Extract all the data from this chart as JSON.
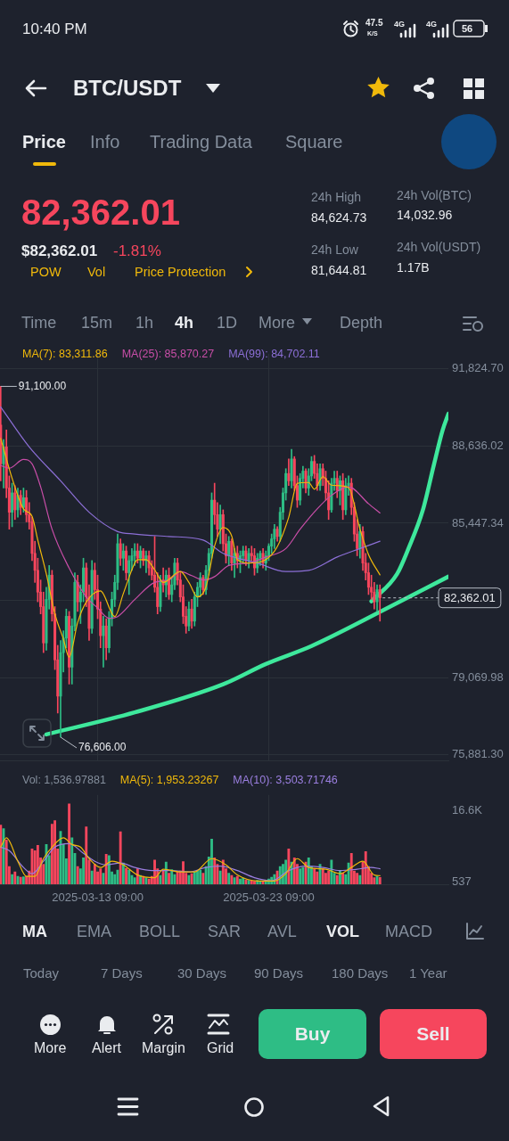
{
  "chart_data": [
    {
      "type": "other",
      "title": "BTC/USDT",
      "annotations": [
        "10:40 PM",
        "47.5",
        "K/S",
        "4G",
        "4G",
        "56",
        "Price",
        "Info",
        "Trading Data",
        "Square",
        "82,362.01",
        "$82,362.01",
        "-1.81%",
        "POW",
        "Vol",
        "Price Protection",
        "24h High",
        "84,624.73",
        "24h Low",
        "81,644.81",
        "24h Vol(BTC)",
        "14,032.96",
        "24h Vol(USDT)",
        "1.17B",
        "Time",
        "15m",
        "1h",
        "4h",
        "1D",
        "More",
        "Depth"
      ]
    },
    {
      "type": "candlestick",
      "x": [
        "2025-03-07T17:00",
        "2025-03-07T21:00",
        "2025-03-08T01:00",
        "2025-03-08T05:00",
        "2025-03-08T09:00",
        "2025-03-08T13:00",
        "2025-03-08T17:00",
        "2025-03-08T21:00",
        "2025-03-09T01:00",
        "2025-03-09T05:00",
        "2025-03-09T09:00",
        "2025-03-09T13:00",
        "2025-03-09T17:00",
        "2025-03-09T21:00",
        "2025-03-10T01:00",
        "2025-03-10T05:00",
        "2025-03-10T09:00",
        "2025-03-10T13:00",
        "2025-03-10T17:00",
        "2025-03-10T21:00",
        "2025-03-11T01:00",
        "2025-03-11T05:00",
        "2025-03-11T09:00",
        "2025-03-11T13:00",
        "2025-03-11T17:00",
        "2025-03-11T21:00",
        "2025-03-12T01:00",
        "2025-03-12T05:00",
        "2025-03-12T09:00",
        "2025-03-12T13:00",
        "2025-03-12T17:00",
        "2025-03-12T21:00",
        "2025-03-13T01:00",
        "2025-03-13T05:00",
        "2025-03-13T09:00",
        "2025-03-13T13:00",
        "2025-03-13T17:00",
        "2025-03-13T21:00",
        "2025-03-14T01:00",
        "2025-03-14T05:00",
        "2025-03-14T09:00",
        "2025-03-14T13:00",
        "2025-03-14T17:00",
        "2025-03-14T21:00",
        "2025-03-15T01:00",
        "2025-03-15T05:00",
        "2025-03-15T09:00",
        "2025-03-15T13:00",
        "2025-03-15T17:00",
        "2025-03-15T21:00",
        "2025-03-16T01:00",
        "2025-03-16T05:00",
        "2025-03-16T09:00",
        "2025-03-16T13:00",
        "2025-03-16T17:00",
        "2025-03-16T21:00",
        "2025-03-17T01:00",
        "2025-03-17T05:00",
        "2025-03-17T09:00",
        "2025-03-17T13:00",
        "2025-03-17T17:00",
        "2025-03-17T21:00",
        "2025-03-18T01:00",
        "2025-03-18T05:00",
        "2025-03-18T09:00",
        "2025-03-18T13:00",
        "2025-03-18T17:00",
        "2025-03-18T21:00",
        "2025-03-19T01:00",
        "2025-03-19T05:00",
        "2025-03-19T09:00",
        "2025-03-19T13:00",
        "2025-03-19T17:00",
        "2025-03-19T21:00",
        "2025-03-20T01:00",
        "2025-03-20T05:00",
        "2025-03-20T09:00",
        "2025-03-20T13:00",
        "2025-03-20T17:00",
        "2025-03-20T21:00",
        "2025-03-21T01:00",
        "2025-03-21T05:00",
        "2025-03-21T09:00",
        "2025-03-21T13:00",
        "2025-03-21T17:00",
        "2025-03-21T21:00",
        "2025-03-22T01:00",
        "2025-03-22T05:00",
        "2025-03-22T09:00",
        "2025-03-22T13:00",
        "2025-03-22T17:00",
        "2025-03-22T21:00",
        "2025-03-23T01:00",
        "2025-03-23T05:00",
        "2025-03-23T09:00",
        "2025-03-23T13:00",
        "2025-03-23T17:00",
        "2025-03-23T21:00",
        "2025-03-24T01:00",
        "2025-03-24T05:00",
        "2025-03-24T09:00",
        "2025-03-24T13:00",
        "2025-03-24T17:00",
        "2025-03-24T21:00",
        "2025-03-25T01:00",
        "2025-03-25T05:00",
        "2025-03-25T09:00",
        "2025-03-25T13:00",
        "2025-03-25T17:00",
        "2025-03-25T21:00",
        "2025-03-26T01:00",
        "2025-03-26T05:00",
        "2025-03-26T09:00",
        "2025-03-26T13:00",
        "2025-03-26T17:00",
        "2025-03-26T21:00",
        "2025-03-27T01:00",
        "2025-03-27T05:00",
        "2025-03-27T09:00",
        "2025-03-27T13:00",
        "2025-03-27T17:00",
        "2025-03-27T21:00",
        "2025-03-28T01:00",
        "2025-03-28T05:00",
        "2025-03-28T09:00",
        "2025-03-28T13:00",
        "2025-03-28T17:00",
        "2025-03-28T21:00",
        "2025-03-29T01:00",
        "2025-03-29T05:00",
        "2025-03-29T09:00",
        "2025-03-29T13:00",
        "2025-03-29T17:00",
        "2025-03-29T21:00"
      ],
      "ohlc": [
        [
          89500,
          91100,
          87200,
          87900
        ],
        [
          87900,
          88900,
          86900,
          88600
        ],
        [
          88600,
          89300,
          86500,
          86900
        ],
        [
          86900,
          87400,
          85200,
          85900
        ],
        [
          85900,
          87100,
          85300,
          86700
        ],
        [
          86700,
          87000,
          85600,
          86000
        ],
        [
          86000,
          86900,
          85700,
          86600
        ],
        [
          86600,
          86800,
          85800,
          86100
        ],
        [
          86100,
          86900,
          85900,
          86500
        ],
        [
          86500,
          86800,
          85500,
          85800
        ],
        [
          85800,
          86300,
          85200,
          85500
        ],
        [
          85500,
          85700,
          83900,
          84200
        ],
        [
          84200,
          84700,
          83000,
          83500
        ],
        [
          83500,
          84000,
          82200,
          82600
        ],
        [
          82600,
          83100,
          81700,
          82000
        ],
        [
          82000,
          82600,
          80100,
          80500
        ],
        [
          80500,
          82800,
          80200,
          82300
        ],
        [
          82300,
          83700,
          81900,
          83300
        ],
        [
          83300,
          83500,
          81400,
          81700
        ],
        [
          81700,
          82000,
          79400,
          79800
        ],
        [
          79800,
          80400,
          77600,
          78300
        ],
        [
          78300,
          80600,
          76606,
          80100
        ],
        [
          80100,
          81000,
          79300,
          80700
        ],
        [
          80700,
          81900,
          80300,
          81600
        ],
        [
          81600,
          81800,
          78800,
          79500
        ],
        [
          79500,
          81500,
          78800,
          81200
        ],
        [
          81200,
          83400,
          81000,
          83000
        ],
        [
          83000,
          83300,
          81800,
          82200
        ],
        [
          82200,
          82900,
          81300,
          82600
        ],
        [
          82600,
          84000,
          82200,
          83600
        ],
        [
          83600,
          83800,
          82000,
          82400
        ],
        [
          82400,
          82900,
          80600,
          81100
        ],
        [
          81100,
          83900,
          80900,
          83500
        ],
        [
          83500,
          83800,
          82300,
          82700
        ],
        [
          82700,
          83300,
          81500,
          81900
        ],
        [
          81900,
          82200,
          80300,
          80800
        ],
        [
          80800,
          81600,
          79500,
          81200
        ],
        [
          81200,
          81500,
          79800,
          80300
        ],
        [
          80300,
          81800,
          80100,
          81500
        ],
        [
          81500,
          82600,
          81200,
          82300
        ],
        [
          82300,
          83300,
          82000,
          83000
        ],
        [
          83000,
          85000,
          82700,
          84600
        ],
        [
          84600,
          84800,
          83700,
          84000
        ],
        [
          84000,
          84600,
          83500,
          84300
        ],
        [
          84300,
          84500,
          83100,
          83400
        ],
        [
          83400,
          84100,
          82500,
          83900
        ],
        [
          83900,
          84400,
          83500,
          84100
        ],
        [
          84100,
          84600,
          83700,
          84300
        ],
        [
          84300,
          84600,
          83800,
          84000
        ],
        [
          84000,
          84500,
          83600,
          84300
        ],
        [
          84300,
          84400,
          83700,
          83900
        ],
        [
          83900,
          84300,
          83400,
          84100
        ],
        [
          84100,
          84300,
          83300,
          83600
        ],
        [
          83600,
          83900,
          83100,
          83300
        ],
        [
          83300,
          84900,
          82600,
          82800
        ],
        [
          82800,
          83400,
          81700,
          82000
        ],
        [
          82000,
          83300,
          81800,
          83100
        ],
        [
          83100,
          83600,
          82600,
          82900
        ],
        [
          82900,
          83500,
          82400,
          83300
        ],
        [
          83300,
          83600,
          82300,
          82500
        ],
        [
          82500,
          83200,
          82200,
          82900
        ],
        [
          82900,
          84000,
          82700,
          83800
        ],
        [
          83800,
          84000,
          82900,
          83100
        ],
        [
          83100,
          83400,
          82200,
          82400
        ],
        [
          82400,
          82900,
          81300,
          81600
        ],
        [
          81600,
          82000,
          80900,
          81200
        ],
        [
          81200,
          82200,
          81000,
          81900
        ],
        [
          81900,
          82300,
          81100,
          81400
        ],
        [
          81400,
          82600,
          81200,
          82400
        ],
        [
          82400,
          83000,
          82000,
          82800
        ],
        [
          82800,
          83400,
          82400,
          83200
        ],
        [
          83200,
          83300,
          82500,
          82700
        ],
        [
          82700,
          83700,
          82500,
          83500
        ],
        [
          83500,
          84400,
          83300,
          84200
        ],
        [
          84200,
          86700,
          84000,
          86400
        ],
        [
          86400,
          87100,
          85400,
          85800
        ],
        [
          85800,
          86300,
          84900,
          85200
        ],
        [
          85200,
          86200,
          84600,
          85800
        ],
        [
          85800,
          86000,
          84300,
          84600
        ],
        [
          84600,
          85000,
          83800,
          84100
        ],
        [
          84100,
          84900,
          83700,
          84700
        ],
        [
          84700,
          84800,
          83500,
          83800
        ],
        [
          83800,
          84400,
          83200,
          84200
        ],
        [
          84200,
          84500,
          83600,
          83900
        ],
        [
          83900,
          84300,
          83400,
          84100
        ],
        [
          84100,
          84500,
          83800,
          84300
        ],
        [
          84300,
          84500,
          83700,
          83900
        ],
        [
          83900,
          84400,
          83600,
          84200
        ],
        [
          84200,
          84500,
          83900,
          84100
        ],
        [
          84100,
          84400,
          83300,
          83600
        ],
        [
          83600,
          84200,
          83400,
          84000
        ],
        [
          84000,
          84300,
          83700,
          84200
        ],
        [
          84200,
          84400,
          83600,
          83800
        ],
        [
          83800,
          84300,
          83500,
          84100
        ],
        [
          84100,
          84600,
          83900,
          84500
        ],
        [
          84500,
          85000,
          84200,
          84800
        ],
        [
          84800,
          85400,
          84400,
          85200
        ],
        [
          85200,
          85300,
          84700,
          84900
        ],
        [
          84900,
          86100,
          84700,
          85900
        ],
        [
          85900,
          86900,
          85600,
          86700
        ],
        [
          86700,
          87700,
          86400,
          87500
        ],
        [
          87500,
          88100,
          87000,
          87200
        ],
        [
          87200,
          88500,
          86900,
          88100
        ],
        [
          88100,
          88200,
          86800,
          87000
        ],
        [
          87000,
          87400,
          86100,
          86400
        ],
        [
          86400,
          87500,
          86200,
          87300
        ],
        [
          87300,
          87800,
          86900,
          87600
        ],
        [
          87600,
          87700,
          86700,
          86900
        ],
        [
          86900,
          87700,
          86600,
          87400
        ],
        [
          87400,
          88200,
          87200,
          88000
        ],
        [
          88000,
          88250,
          87300,
          87500
        ],
        [
          87500,
          87900,
          86800,
          87000
        ],
        [
          87000,
          87900,
          86800,
          87700
        ],
        [
          87700,
          87900,
          87000,
          87300
        ],
        [
          87300,
          87600,
          86400,
          86700
        ],
        [
          86700,
          87200,
          85600,
          86000
        ],
        [
          86000,
          87300,
          85900,
          87100
        ],
        [
          87100,
          87600,
          86800,
          87300
        ],
        [
          87300,
          87600,
          86500,
          86800
        ],
        [
          86800,
          87400,
          86200,
          87200
        ],
        [
          87200,
          87500,
          85600,
          86000
        ],
        [
          86000,
          87300,
          85800,
          87000
        ],
        [
          87000,
          87400,
          86600,
          87100
        ],
        [
          87100,
          87300,
          85800,
          86100
        ],
        [
          86100,
          86300,
          84700,
          85000
        ],
        [
          85000,
          85600,
          84100,
          84400
        ],
        [
          84400,
          85400,
          84000,
          85100
        ],
        [
          85100,
          85300,
          83500,
          83800
        ],
        [
          83800,
          84200,
          83100,
          83400
        ],
        [
          83400,
          83800,
          82500,
          82800
        ],
        [
          82800,
          83300,
          82300,
          82600
        ],
        [
          82600,
          83000,
          81900,
          82200
        ],
        [
          82200,
          82900,
          81800,
          82700
        ],
        [
          82700,
          82900,
          81400,
          82362.01
        ]
      ],
      "colors": [
        "#f6465d",
        "#2ebd85",
        "#f6465d",
        "#f6465d",
        "#2ebd85",
        "#f6465d",
        "#2ebd85",
        "#f6465d",
        "#2ebd85",
        "#f6465d",
        "#f6465d",
        "#f6465d",
        "#f6465d",
        "#f6465d",
        "#f6465d",
        "#f6465d",
        "#2ebd85",
        "#2ebd85",
        "#f6465d",
        "#f6465d",
        "#f6465d",
        "#2ebd85",
        "#2ebd85",
        "#2ebd85",
        "#f6465d",
        "#2ebd85",
        "#2ebd85",
        "#f6465d",
        "#2ebd85",
        "#2ebd85",
        "#f6465d",
        "#f6465d",
        "#2ebd85",
        "#f6465d",
        "#f6465d",
        "#f6465d",
        "#2ebd85",
        "#f6465d",
        "#2ebd85",
        "#2ebd85",
        "#2ebd85",
        "#2ebd85",
        "#f6465d",
        "#2ebd85",
        "#f6465d",
        "#2ebd85",
        "#2ebd85",
        "#2ebd85",
        "#f6465d",
        "#2ebd85",
        "#f6465d",
        "#2ebd85",
        "#f6465d",
        "#f6465d",
        "#f6465d",
        "#f6465d",
        "#2ebd85",
        "#f6465d",
        "#2ebd85",
        "#f6465d",
        "#2ebd85",
        "#2ebd85",
        "#f6465d",
        "#f6465d",
        "#f6465d",
        "#f6465d",
        "#2ebd85",
        "#f6465d",
        "#2ebd85",
        "#2ebd85",
        "#2ebd85",
        "#f6465d",
        "#2ebd85",
        "#2ebd85",
        "#2ebd85",
        "#f6465d",
        "#f6465d",
        "#2ebd85",
        "#f6465d",
        "#f6465d",
        "#2ebd85",
        "#f6465d",
        "#2ebd85",
        "#f6465d",
        "#2ebd85",
        "#2ebd85",
        "#f6465d",
        "#2ebd85",
        "#f6465d",
        "#f6465d",
        "#2ebd85",
        "#2ebd85",
        "#f6465d",
        "#2ebd85",
        "#2ebd85",
        "#2ebd85",
        "#2ebd85",
        "#f6465d",
        "#2ebd85",
        "#2ebd85",
        "#2ebd85",
        "#f6465d",
        "#2ebd85",
        "#f6465d",
        "#f6465d",
        "#2ebd85",
        "#2ebd85",
        "#f6465d",
        "#2ebd85",
        "#2ebd85",
        "#f6465d",
        "#f6465d",
        "#2ebd85",
        "#f6465d",
        "#f6465d",
        "#f6465d",
        "#2ebd85",
        "#2ebd85",
        "#f6465d",
        "#2ebd85",
        "#f6465d",
        "#2ebd85",
        "#2ebd85",
        "#f6465d",
        "#f6465d",
        "#f6465d",
        "#2ebd85",
        "#f6465d",
        "#f6465d",
        "#f6465d",
        "#f6465d",
        "#f6465d",
        "#2ebd85",
        "#f6465d"
      ],
      "series": [
        {
          "name": "MA(7): 83,311.86",
          "type": "line",
          "color": "#f0b90b",
          "x": [
            "2025-03-07T17:00",
            "2025-03-08T09:00",
            "2025-03-09T01:00",
            "2025-03-09T13:00",
            "2025-03-09T21:00",
            "2025-03-10T09:00",
            "2025-03-10T21:00",
            "2025-03-11T09:00",
            "2025-03-11T17:00",
            "2025-03-12T05:00",
            "2025-03-12T17:00",
            "2025-03-13T13:00",
            "2025-03-14T09:00",
            "2025-03-14T21:00",
            "2025-03-15T13:00",
            "2025-03-15T17:00",
            "2025-03-16T05:00",
            "2025-03-16T17:00",
            "2025-03-17T05:00",
            "2025-03-18T05:00",
            "2025-03-18T17:00",
            "2025-03-19T05:00",
            "2025-03-19T17:00",
            "2025-03-20T05:00",
            "2025-03-20T17:00",
            "2025-03-21T05:00",
            "2025-03-21T13:00",
            "2025-03-22T05:00",
            "2025-03-23T17:00",
            "2025-03-24T13:00",
            "2025-03-25T01:00",
            "2025-03-25T17:00",
            "2025-03-26T01:00",
            "2025-03-26T13:00",
            "2025-03-27T01:00",
            "2025-03-28T01:00",
            "2025-03-28T17:00",
            "2025-03-29T05:00",
            "2025-03-29T21:00"
          ],
          "values": [
            88950,
            87300,
            86040,
            85730,
            84750,
            83350,
            81700,
            80650,
            79910,
            81350,
            82190,
            82650,
            81590,
            82540,
            83800,
            83940,
            83940,
            83520,
            83000,
            83450,
            83000,
            82400,
            82820,
            84500,
            85270,
            84920,
            83940,
            83800,
            84290,
            85690,
            87090,
            87130,
            86850,
            87370,
            87020,
            86920,
            85200,
            84150,
            83311.86
          ]
        },
        {
          "name": "MA(25): 85,870.27",
          "type": "line",
          "color": "#c94ea8",
          "x": [
            "2025-03-07T17:00",
            "2025-03-08T05:00",
            "2025-03-09T01:00",
            "2025-03-09T13:00",
            "2025-03-10T01:00",
            "2025-03-10T17:00",
            "2025-03-11T17:00",
            "2025-03-12T17:00",
            "2025-03-13T09:00",
            "2025-03-14T01:00",
            "2025-03-14T13:00",
            "2025-03-15T13:00",
            "2025-03-16T17:00",
            "2025-03-17T13:00",
            "2025-03-18T05:00",
            "2025-03-18T21:00",
            "2025-03-19T13:00",
            "2025-03-20T05:00",
            "2025-03-21T01:00",
            "2025-03-22T05:00",
            "2025-03-23T05:00",
            "2025-03-24T09:00",
            "2025-03-25T05:00",
            "2025-03-26T05:00",
            "2025-03-27T01:00",
            "2025-03-28T01:00",
            "2025-03-29T05:00",
            "2025-03-29T21:00"
          ],
          "values": [
            87830,
            87720,
            88080,
            87900,
            86950,
            85200,
            83590,
            82400,
            81940,
            81520,
            81590,
            82290,
            83000,
            83100,
            83450,
            83280,
            83100,
            83240,
            83700,
            83800,
            84050,
            84400,
            85200,
            86040,
            86600,
            86950,
            86250,
            85870.27
          ]
        },
        {
          "name": "MA(99): 84,702.11",
          "type": "line",
          "color": "#8c6fd6",
          "x": [
            "2025-03-07T17:00",
            "2025-03-09T09:00",
            "2025-03-11T05:00",
            "2025-03-12T21:00",
            "2025-03-14T13:00",
            "2025-03-15T13:00",
            "2025-03-17T13:00",
            "2025-03-19T13:00",
            "2025-03-20T17:00",
            "2025-03-22T17:00",
            "2025-03-24T09:00",
            "2025-03-25T17:00",
            "2025-03-27T09:00",
            "2025-03-28T17:00",
            "2025-03-29T21:00"
          ],
          "values": [
            90250,
            88600,
            87200,
            85900,
            85100,
            85000,
            84900,
            84750,
            84200,
            83800,
            83450,
            83500,
            84050,
            84400,
            84702.11
          ]
        },
        {
          "type": "line",
          "color": "#3ee89c",
          "x": [
            "2025-03-10T09:00",
            "2025-03-15T13:00",
            "2025-03-20T17:00",
            "2025-03-23T05:00",
            "2025-03-25T21:00",
            "2025-03-30T01:00",
            "2025-04-02T21:00"
          ],
          "values": [
            76720,
            77630,
            78790,
            79630,
            80370,
            81840,
            83240
          ]
        },
        {
          "type": "line",
          "color": "#3ee89c",
          "x": [
            "2025-03-29T09:00",
            "2025-03-30T21:00",
            "2025-03-31T13:00",
            "2025-04-01T09:00",
            "2025-04-02T01:00",
            "2025-04-02T13:00",
            "2025-04-02T21:00"
          ],
          "values": [
            82220,
            83350,
            84400,
            85970,
            87900,
            89300,
            89970
          ]
        }
      ],
      "xlim": [
        "2025-03-07T16:00",
        "2025-04-02T21:00"
      ],
      "xticks": [
        {
          "value": "2025-03-13T09:00",
          "label": null
        },
        {
          "value": "2025-03-23T09:00",
          "label": null
        }
      ],
      "ylim": [
        75640,
        92450
      ],
      "yticks": [
        {
          "value": 91824.7,
          "label": "91,824.70"
        },
        {
          "value": 88636.02,
          "label": "88,636.02"
        },
        {
          "value": 85447.34,
          "label": "85,447.34"
        },
        {
          "value": 82258.66,
          "label": null
        },
        {
          "value": 79069.98,
          "label": "79,069.98"
        },
        {
          "value": 75881.3,
          "label": "75,881.30"
        }
      ],
      "tick_labels": "y",
      "grid": true,
      "legend": "top",
      "ref_lines": [
        {
          "axis": "y",
          "value": 82362.01,
          "label": "82,362.01",
          "line_style": "dashed"
        }
      ],
      "annotations": [
        {
          "text": "91,100.00",
          "x": "2025-03-07T17:00",
          "y": 91100
        },
        {
          "text": "76,606.00",
          "x": "2025-03-11T05:00",
          "y": 76606
        }
      ]
    },
    {
      "type": "bar",
      "x": [
        "2025-03-07T17:00",
        "2025-03-07T21:00",
        "2025-03-08T01:00",
        "2025-03-08T05:00",
        "2025-03-08T09:00",
        "2025-03-08T13:00",
        "2025-03-08T17:00",
        "2025-03-08T21:00",
        "2025-03-09T01:00",
        "2025-03-09T05:00",
        "2025-03-09T09:00",
        "2025-03-09T13:00",
        "2025-03-09T17:00",
        "2025-03-09T21:00",
        "2025-03-10T01:00",
        "2025-03-10T05:00",
        "2025-03-10T09:00",
        "2025-03-10T13:00",
        "2025-03-10T17:00",
        "2025-03-10T21:00",
        "2025-03-11T01:00",
        "2025-03-11T05:00",
        "2025-03-11T09:00",
        "2025-03-11T13:00",
        "2025-03-11T17:00",
        "2025-03-11T21:00",
        "2025-03-12T01:00",
        "2025-03-12T05:00",
        "2025-03-12T09:00",
        "2025-03-12T13:00",
        "2025-03-12T17:00",
        "2025-03-12T21:00",
        "2025-03-13T01:00",
        "2025-03-13T05:00",
        "2025-03-13T09:00",
        "2025-03-13T13:00",
        "2025-03-13T17:00",
        "2025-03-13T21:00",
        "2025-03-14T01:00",
        "2025-03-14T05:00",
        "2025-03-14T09:00",
        "2025-03-14T13:00",
        "2025-03-14T17:00",
        "2025-03-14T21:00",
        "2025-03-15T01:00",
        "2025-03-15T05:00",
        "2025-03-15T09:00",
        "2025-03-15T13:00",
        "2025-03-15T17:00",
        "2025-03-15T21:00",
        "2025-03-16T01:00",
        "2025-03-16T05:00",
        "2025-03-16T09:00",
        "2025-03-16T13:00",
        "2025-03-16T17:00",
        "2025-03-16T21:00",
        "2025-03-17T01:00",
        "2025-03-17T05:00",
        "2025-03-17T09:00",
        "2025-03-17T13:00",
        "2025-03-17T17:00",
        "2025-03-17T21:00",
        "2025-03-18T01:00",
        "2025-03-18T05:00",
        "2025-03-18T09:00",
        "2025-03-18T13:00",
        "2025-03-18T17:00",
        "2025-03-18T21:00",
        "2025-03-19T01:00",
        "2025-03-19T05:00",
        "2025-03-19T09:00",
        "2025-03-19T13:00",
        "2025-03-19T17:00",
        "2025-03-19T21:00",
        "2025-03-20T01:00",
        "2025-03-20T05:00",
        "2025-03-20T09:00",
        "2025-03-20T13:00",
        "2025-03-20T17:00",
        "2025-03-20T21:00",
        "2025-03-21T01:00",
        "2025-03-21T05:00",
        "2025-03-21T09:00",
        "2025-03-21T13:00",
        "2025-03-21T17:00",
        "2025-03-21T21:00",
        "2025-03-22T01:00",
        "2025-03-22T05:00",
        "2025-03-22T09:00",
        "2025-03-22T13:00",
        "2025-03-22T17:00",
        "2025-03-22T21:00",
        "2025-03-23T01:00",
        "2025-03-23T05:00",
        "2025-03-23T09:00",
        "2025-03-23T13:00",
        "2025-03-23T17:00",
        "2025-03-23T21:00",
        "2025-03-24T01:00",
        "2025-03-24T05:00",
        "2025-03-24T09:00",
        "2025-03-24T13:00",
        "2025-03-24T17:00",
        "2025-03-24T21:00",
        "2025-03-25T01:00",
        "2025-03-25T05:00",
        "2025-03-25T09:00",
        "2025-03-25T13:00",
        "2025-03-25T17:00",
        "2025-03-25T21:00",
        "2025-03-26T01:00",
        "2025-03-26T05:00",
        "2025-03-26T09:00",
        "2025-03-26T13:00",
        "2025-03-26T17:00",
        "2025-03-26T21:00",
        "2025-03-27T01:00",
        "2025-03-27T05:00",
        "2025-03-27T09:00",
        "2025-03-27T13:00",
        "2025-03-27T17:00",
        "2025-03-27T21:00",
        "2025-03-28T01:00",
        "2025-03-28T05:00",
        "2025-03-28T09:00",
        "2025-03-28T13:00",
        "2025-03-28T17:00",
        "2025-03-28T21:00",
        "2025-03-29T01:00",
        "2025-03-29T05:00",
        "2025-03-29T09:00",
        "2025-03-29T13:00",
        "2025-03-29T17:00",
        "2025-03-29T21:00"
      ],
      "series": [
        {
          "name": "Vol: 1,536.97881",
          "type": "bar",
          "values": [
            13400,
            12600,
            10000,
            4000,
            2200,
            2800,
            1800,
            1600,
            1700,
            1800,
            3000,
            8000,
            7600,
            8800,
            6000,
            4500,
            9000,
            6500,
            13600,
            14400,
            8000,
            12000,
            9000,
            5800,
            18200,
            10500,
            7000,
            4000,
            3500,
            6000,
            13000,
            5500,
            3000,
            4500,
            2800,
            3500,
            2500,
            6800,
            6500,
            2800,
            2200,
            3200,
            11900,
            4800,
            3600,
            3200,
            2000,
            1500,
            3500,
            2000,
            1800,
            1500,
            1200,
            1800,
            5500,
            3500,
            2000,
            3000,
            5000,
            2500,
            3300,
            2200,
            2800,
            3000,
            5100,
            2500,
            2000,
            2400,
            2800,
            3000,
            3200,
            2500,
            4000,
            6200,
            10200,
            6000,
            4500,
            3000,
            5500,
            3500,
            2500,
            2000,
            1500,
            1800,
            1200,
            1400,
            1000,
            900,
            800,
            700,
            900,
            800,
            600,
            900,
            1200,
            1600,
            2200,
            3000,
            4000,
            4500,
            5500,
            8000,
            5000,
            6000,
            4500,
            3500,
            3800,
            5000,
            6000,
            4000,
            3500,
            2800,
            4500,
            3500,
            2500,
            3000,
            5500,
            2500,
            2000,
            3000,
            2500,
            2200,
            4800,
            7000,
            3000,
            2500,
            2000,
            5000,
            7400,
            4000,
            2500,
            1500,
            1800,
            1536.97881
          ],
          "colors": [
            "#f6465d",
            "#2ebd85",
            "#f6465d",
            "#f6465d",
            "#2ebd85",
            "#f6465d",
            "#2ebd85",
            "#f6465d",
            "#2ebd85",
            "#f6465d",
            "#f6465d",
            "#f6465d",
            "#f6465d",
            "#f6465d",
            "#f6465d",
            "#f6465d",
            "#2ebd85",
            "#2ebd85",
            "#f6465d",
            "#f6465d",
            "#f6465d",
            "#2ebd85",
            "#2ebd85",
            "#2ebd85",
            "#f6465d",
            "#2ebd85",
            "#2ebd85",
            "#f6465d",
            "#2ebd85",
            "#2ebd85",
            "#f6465d",
            "#f6465d",
            "#2ebd85",
            "#f6465d",
            "#f6465d",
            "#f6465d",
            "#2ebd85",
            "#f6465d",
            "#2ebd85",
            "#2ebd85",
            "#2ebd85",
            "#2ebd85",
            "#f6465d",
            "#2ebd85",
            "#f6465d",
            "#2ebd85",
            "#2ebd85",
            "#2ebd85",
            "#f6465d",
            "#2ebd85",
            "#f6465d",
            "#2ebd85",
            "#f6465d",
            "#f6465d",
            "#f6465d",
            "#f6465d",
            "#2ebd85",
            "#f6465d",
            "#2ebd85",
            "#f6465d",
            "#2ebd85",
            "#2ebd85",
            "#f6465d",
            "#f6465d",
            "#f6465d",
            "#f6465d",
            "#2ebd85",
            "#f6465d",
            "#2ebd85",
            "#2ebd85",
            "#2ebd85",
            "#f6465d",
            "#2ebd85",
            "#2ebd85",
            "#2ebd85",
            "#f6465d",
            "#f6465d",
            "#2ebd85",
            "#f6465d",
            "#f6465d",
            "#2ebd85",
            "#f6465d",
            "#2ebd85",
            "#f6465d",
            "#2ebd85",
            "#2ebd85",
            "#f6465d",
            "#2ebd85",
            "#f6465d",
            "#f6465d",
            "#2ebd85",
            "#2ebd85",
            "#f6465d",
            "#2ebd85",
            "#2ebd85",
            "#2ebd85",
            "#2ebd85",
            "#f6465d",
            "#2ebd85",
            "#2ebd85",
            "#2ebd85",
            "#f6465d",
            "#2ebd85",
            "#f6465d",
            "#f6465d",
            "#2ebd85",
            "#2ebd85",
            "#f6465d",
            "#2ebd85",
            "#2ebd85",
            "#f6465d",
            "#f6465d",
            "#2ebd85",
            "#f6465d",
            "#f6465d",
            "#f6465d",
            "#2ebd85",
            "#2ebd85",
            "#f6465d",
            "#2ebd85",
            "#f6465d",
            "#2ebd85",
            "#2ebd85",
            "#f6465d",
            "#f6465d",
            "#f6465d",
            "#2ebd85",
            "#f6465d",
            "#f6465d",
            "#f6465d",
            "#f6465d",
            "#f6465d",
            "#2ebd85",
            "#f6465d"
          ]
        },
        {
          "name": "MA(5): 1,953.23267",
          "type": "line",
          "color": "#f0b90b",
          "x": [
            "2025-03-07T17:00",
            "2025-03-08T01:00",
            "2025-03-08T17:00",
            "2025-03-09T05:00",
            "2025-03-09T17:00",
            "2025-03-10T05:00",
            "2025-03-10T17:00",
            "2025-03-11T09:00",
            "2025-03-11T21:00",
            "2025-03-12T09:00",
            "2025-03-12T21:00",
            "2025-03-13T13:00",
            "2025-03-14T05:00",
            "2025-03-14T21:00",
            "2025-03-15T17:00",
            "2025-03-16T17:00",
            "2025-03-17T05:00",
            "2025-03-18T05:00",
            "2025-03-19T01:00",
            "2025-03-20T01:00",
            "2025-03-20T21:00",
            "2025-03-21T13:00",
            "2025-03-22T17:00",
            "2025-03-23T17:00",
            "2025-03-24T09:00",
            "2025-03-25T01:00",
            "2025-03-25T17:00",
            "2025-03-26T17:00",
            "2025-03-27T13:00",
            "2025-03-28T05:00",
            "2025-03-28T21:00",
            "2025-03-29T13:00",
            "2025-03-29T21:00"
          ],
          "values": [
            8400,
            10500,
            5200,
            1800,
            1800,
            5800,
            8400,
            10500,
            9000,
            8400,
            5800,
            3800,
            5200,
            4400,
            2100,
            1500,
            3400,
            2800,
            2800,
            5800,
            4400,
            2100,
            750,
            750,
            2400,
            5800,
            3800,
            3400,
            2400,
            3800,
            5200,
            2100,
            1953.23267
          ]
        },
        {
          "name": "MA(10): 3,503.71746",
          "type": "line",
          "color": "#9b7fe0",
          "x": [
            "2025-03-07T17:00",
            "2025-03-08T05:00",
            "2025-03-09T01:00",
            "2025-03-09T13:00",
            "2025-03-10T05:00",
            "2025-03-10T21:00",
            "2025-03-11T17:00",
            "2025-03-12T13:00",
            "2025-03-13T05:00",
            "2025-03-13T21:00",
            "2025-03-14T17:00",
            "2025-03-15T13:00",
            "2025-03-16T13:00",
            "2025-03-17T17:00",
            "2025-03-18T17:00",
            "2025-03-19T17:00",
            "2025-03-20T13:00",
            "2025-03-21T13:00",
            "2025-03-22T13:00",
            "2025-03-23T13:00",
            "2025-03-24T13:00",
            "2025-03-25T13:00",
            "2025-03-26T13:00",
            "2025-03-27T13:00",
            "2025-03-28T13:00",
            "2025-03-29T09:00",
            "2025-03-29T21:00"
          ],
          "values": [
            8400,
            7600,
            3800,
            2400,
            5200,
            8400,
            9200,
            7000,
            5200,
            4400,
            4800,
            3800,
            3100,
            3100,
            2800,
            3800,
            4100,
            3100,
            1500,
            800,
            3100,
            4100,
            3800,
            3100,
            3400,
            3800,
            3503.71746
          ]
        }
      ],
      "xlim": [
        "2025-03-07T16:00",
        "2025-04-02T21:00"
      ],
      "xticks": [
        {
          "value": "2025-03-13T09:00",
          "label": "2025-03-13 09:00"
        },
        {
          "value": "2025-03-23T09:00",
          "label": "2025-03-23 09:00"
        }
      ],
      "ylim": [
        0,
        20200
      ],
      "yticks": [
        537,
        {
          "value": 16600,
          "label": "16.6K"
        }
      ],
      "grid": "x",
      "legend": "top"
    },
    {
      "type": "other",
      "annotations": [
        "MA",
        "EMA",
        "BOLL",
        "SAR",
        "AVL",
        "VOL",
        "MACD",
        "Today",
        "7 Days",
        "30 Days",
        "90 Days",
        "180 Days",
        "1 Year",
        "More",
        "Alert",
        "Margin",
        "Grid",
        "Buy",
        "Sell"
      ]
    }
  ]
}
